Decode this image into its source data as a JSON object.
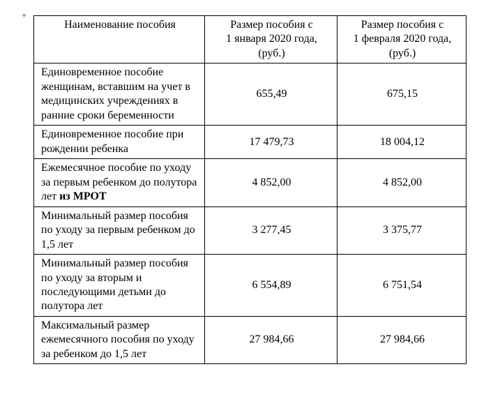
{
  "anchor_glyph": "✦",
  "table": {
    "columns": [
      "Наименование пособия",
      "Размер пособия с 1 января 2020 года, (руб.)",
      "Размер пособия с 1 февраля 2020 года, (руб.)"
    ],
    "rows": [
      {
        "name_pre": "Единовременное пособие женщинам, вставшим на учет в медицинских учреждениях в ранние сроки беременности",
        "name_bold": "",
        "jan": "655,49",
        "feb": "675,15"
      },
      {
        "name_pre": "Единовременное пособие при рождении ребенка",
        "name_bold": "",
        "jan": "17 479,73",
        "feb": "18 004,12"
      },
      {
        "name_pre": "Ежемесячное пособие по уходу за первым ребенком до полутора лет ",
        "name_bold": "из МРОТ",
        "jan": "4 852,00",
        "feb": "4 852,00"
      },
      {
        "name_pre": "Минимальный размер пособия по уходу за первым ребенком до 1,5 лет",
        "name_bold": "",
        "jan": "3 277,45",
        "feb": "3 375,77"
      },
      {
        "name_pre": "Минимальный размер пособия по уходу за вторым и последующими детьми до полутора лет",
        "name_bold": "",
        "jan": "6 554,89",
        "feb": "6 751,54"
      },
      {
        "name_pre": "Максимальный размер ежемесячного пособия по уходу за ребенком до 1,5 лет",
        "name_bold": "",
        "jan": "27 984,66",
        "feb": "27 984,66"
      }
    ],
    "border_color": "#000000",
    "background_color": "#ffffff",
    "font_family": "Times New Roman",
    "font_size_pt": 12
  }
}
